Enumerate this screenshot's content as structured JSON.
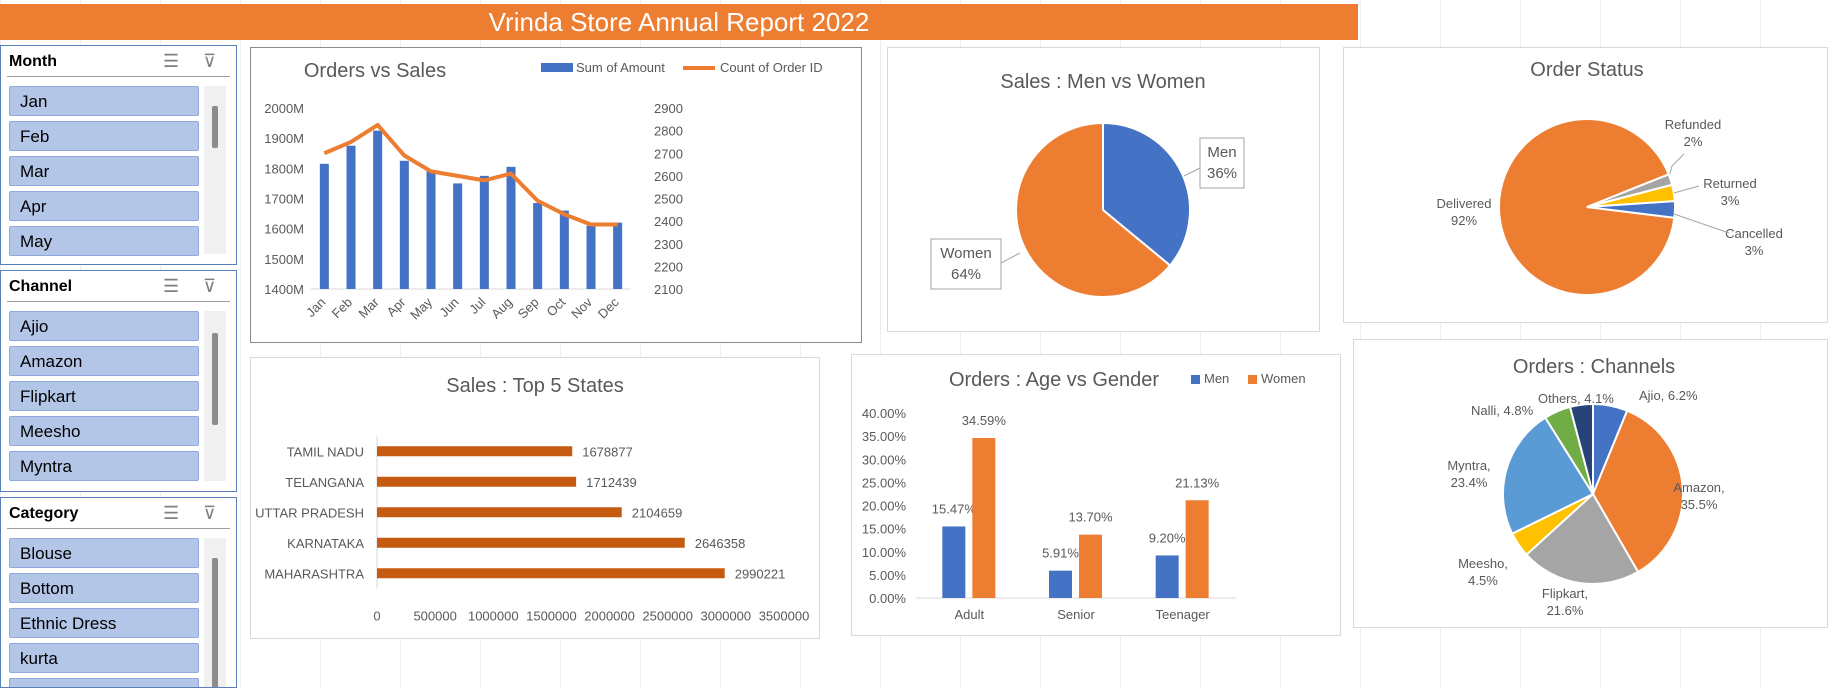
{
  "banner": {
    "title": "Vrinda Store Annual Report 2022"
  },
  "slicers": [
    {
      "title": "Month",
      "items": [
        "Jan",
        "Feb",
        "Mar",
        "Apr",
        "May"
      ]
    },
    {
      "title": "Channel",
      "items": [
        "Ajio",
        "Amazon",
        "Flipkart",
        "Meesho",
        "Myntra"
      ]
    },
    {
      "title": "Category",
      "items": [
        "Blouse",
        "Bottom",
        "Ethnic Dress",
        "kurta"
      ]
    }
  ],
  "icons": {
    "multi_select": "multi-select-icon",
    "clear_filter": "clear-filter-icon"
  },
  "colors": {
    "blue": "#4472c4",
    "orange": "#ed7d31",
    "gray": "#a5a5a5",
    "yellow": "#ffc000",
    "lightblue": "#5b9bd5",
    "green": "#70ad47",
    "navy": "#264478",
    "darkorange": "#c55a11"
  },
  "chart_data": [
    {
      "id": "orders_vs_sales",
      "type": "bar",
      "title": "Orders vs Sales",
      "categories": [
        "Jan",
        "Feb",
        "Mar",
        "Apr",
        "May",
        "Jun",
        "Jul",
        "Aug",
        "Sep",
        "Oct",
        "Nov",
        "Dec"
      ],
      "series": [
        {
          "name": "Sum of Amount",
          "type": "bar",
          "axis": "left",
          "values": [
            1815,
            1875,
            1925,
            1825,
            1790,
            1750,
            1775,
            1805,
            1685,
            1660,
            1610,
            1620
          ]
        },
        {
          "name": "Count of Order ID",
          "type": "line",
          "axis": "right",
          "values": [
            2700,
            2750,
            2825,
            2690,
            2620,
            2600,
            2580,
            2610,
            2490,
            2430,
            2385,
            2385
          ]
        }
      ],
      "y_left": {
        "min": 1400,
        "max": 2000,
        "step": 100,
        "ticks": [
          "1400M",
          "1500M",
          "1600M",
          "1700M",
          "1800M",
          "1900M",
          "2000M"
        ]
      },
      "y_right": {
        "min": 2100,
        "max": 2900,
        "step": 100,
        "ticks": [
          "2100",
          "2200",
          "2300",
          "2400",
          "2500",
          "2600",
          "2700",
          "2800",
          "2900"
        ]
      },
      "legend": "top-right"
    },
    {
      "id": "sales_men_women",
      "type": "pie",
      "title": "Sales : Men vs Women",
      "slices": [
        {
          "label": "Men",
          "value": 36,
          "text": "36%"
        },
        {
          "label": "Women",
          "value": 64,
          "text": "64%"
        }
      ]
    },
    {
      "id": "order_status",
      "type": "pie",
      "title": "Order Status",
      "slices": [
        {
          "label": "Delivered",
          "value": 92,
          "text": "92%"
        },
        {
          "label": "Refunded",
          "value": 2,
          "text": "2%"
        },
        {
          "label": "Returned",
          "value": 3,
          "text": "3%"
        },
        {
          "label": "Cancelled",
          "value": 3,
          "text": "3%"
        }
      ]
    },
    {
      "id": "top5_states",
      "type": "bar",
      "orientation": "horizontal",
      "title": "Sales : Top 5 States",
      "categories": [
        "TAMIL NADU",
        "TELANGANA",
        "UTTAR PRADESH",
        "KARNATAKA",
        "MAHARASHTRA"
      ],
      "values": [
        1678877,
        1712439,
        2104659,
        2646358,
        2990221
      ],
      "xlim": [
        0,
        3500000
      ],
      "x_ticks": [
        "0",
        "500000",
        "1000000",
        "1500000",
        "2000000",
        "2500000",
        "3000000",
        "3500000"
      ]
    },
    {
      "id": "age_vs_gender",
      "type": "bar",
      "title": "Orders : Age vs Gender",
      "categories": [
        "Adult",
        "Senior",
        "Teenager"
      ],
      "series": [
        {
          "name": "Men",
          "values": [
            15.47,
            5.91,
            9.2
          ],
          "labels": [
            "15.47%",
            "5.91%",
            "9.20%"
          ]
        },
        {
          "name": "Women",
          "values": [
            34.59,
            13.7,
            21.13
          ],
          "labels": [
            "34.59%",
            "13.70%",
            "21.13%"
          ]
        }
      ],
      "ylim": [
        0,
        40
      ],
      "y_ticks": [
        "0.00%",
        "5.00%",
        "10.00%",
        "15.00%",
        "20.00%",
        "25.00%",
        "30.00%",
        "35.00%",
        "40.00%"
      ],
      "legend": "top-right"
    },
    {
      "id": "orders_channels",
      "type": "pie",
      "title": "Orders : Channels",
      "slices": [
        {
          "label": "Ajio",
          "value": 6.2,
          "text": "Ajio, 6.2%"
        },
        {
          "label": "Amazon",
          "value": 35.5,
          "text": "Amazon, 35.5%"
        },
        {
          "label": "Flipkart",
          "value": 21.6,
          "text": "Flipkart, 21.6%"
        },
        {
          "label": "Meesho",
          "value": 4.5,
          "text": "Meesho, 4.5%"
        },
        {
          "label": "Myntra",
          "value": 23.4,
          "text": "Myntra, 23.4%"
        },
        {
          "label": "Nalli",
          "value": 4.8,
          "text": "Nalli, 4.8%"
        },
        {
          "label": "Others",
          "value": 4.1,
          "text": "Others, 4.1%"
        }
      ]
    }
  ]
}
